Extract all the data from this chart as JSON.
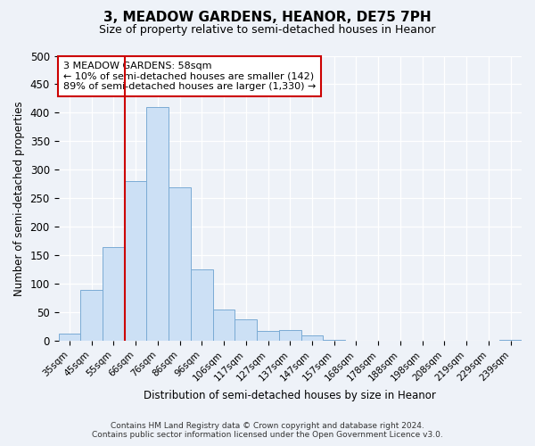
{
  "title": "3, MEADOW GARDENS, HEANOR, DE75 7PH",
  "subtitle": "Size of property relative to semi-detached houses in Heanor",
  "xlabel": "Distribution of semi-detached houses by size in Heanor",
  "ylabel": "Number of semi-detached properties",
  "bar_labels": [
    "35sqm",
    "45sqm",
    "55sqm",
    "66sqm",
    "76sqm",
    "86sqm",
    "96sqm",
    "106sqm",
    "117sqm",
    "127sqm",
    "137sqm",
    "147sqm",
    "157sqm",
    "168sqm",
    "178sqm",
    "188sqm",
    "198sqm",
    "208sqm",
    "219sqm",
    "229sqm",
    "239sqm"
  ],
  "bar_values": [
    12,
    90,
    165,
    280,
    410,
    270,
    125,
    55,
    38,
    17,
    19,
    10,
    1,
    0,
    0,
    0,
    0,
    0,
    0,
    0,
    1
  ],
  "bar_color": "#cce0f5",
  "bar_edge_color": "#7aabd4",
  "property_line_color": "#cc0000",
  "ylim": [
    0,
    500
  ],
  "annotation_title": "3 MEADOW GARDENS: 58sqm",
  "annotation_line1": "← 10% of semi-detached houses are smaller (142)",
  "annotation_line2": "89% of semi-detached houses are larger (1,330) →",
  "annotation_box_color": "#ffffff",
  "annotation_box_edge": "#cc0000",
  "footer_line1": "Contains HM Land Registry data © Crown copyright and database right 2024.",
  "footer_line2": "Contains public sector information licensed under the Open Government Licence v3.0.",
  "bg_color": "#eef2f8",
  "plot_bg_color": "#eef2f8",
  "line_bar_index": 2,
  "line_bar_right_edge": true
}
